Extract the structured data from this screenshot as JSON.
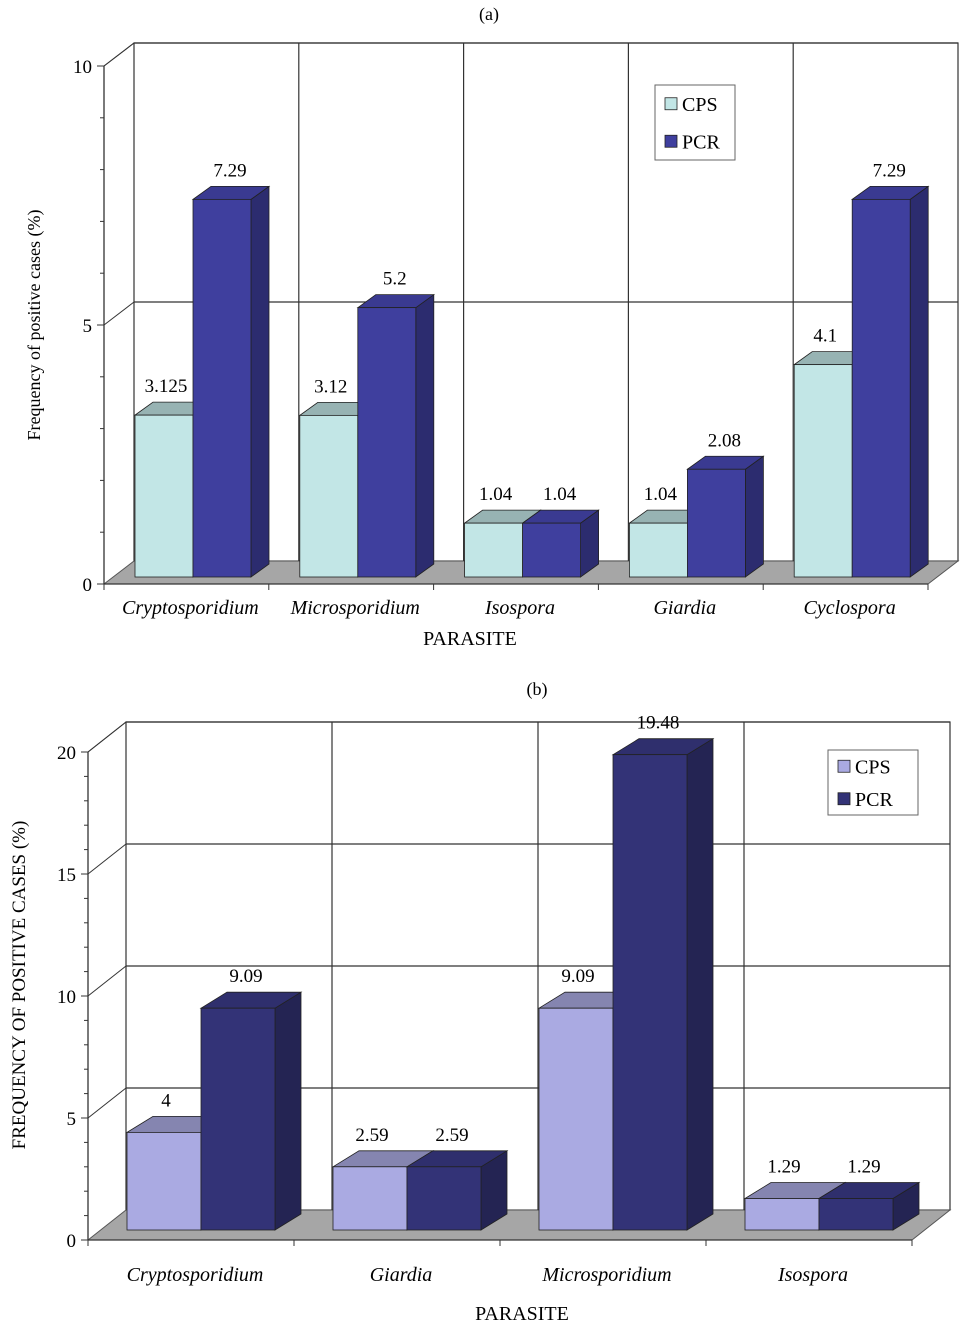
{
  "chart_data": [
    {
      "type": "bar",
      "panel_label": "(a)",
      "xlabel": "PARASITE",
      "ylabel": "Frequency of positive cases (%)",
      "categories": [
        "Cryptosporidium",
        "Microsporidium",
        "Isospora",
        "Giardia",
        "Cyclospora"
      ],
      "series": [
        {
          "name": "CPS",
          "values": [
            3.125,
            3.12,
            1.04,
            1.04,
            4.1
          ],
          "labels": [
            "3.125",
            "3.12",
            "1.04",
            "1.04",
            "4.1"
          ],
          "color": "#c2e6e6"
        },
        {
          "name": "PCR",
          "values": [
            7.29,
            5.2,
            1.04,
            2.08,
            7.29
          ],
          "labels": [
            "7.29",
            "5.2",
            "1.04",
            "2.08",
            "7.29"
          ],
          "color": "#3f3f9e"
        }
      ],
      "ylim": [
        0,
        10
      ],
      "yticks": [
        "0",
        "5",
        "10"
      ],
      "grid": true,
      "style": "3d",
      "legend": "top-right"
    },
    {
      "type": "bar",
      "panel_label": "(b)",
      "xlabel": "PARASITE",
      "ylabel": "FREQUENCY OF POSITIVE CASES (%)",
      "categories": [
        "Cryptosporidium",
        "Giardia",
        "Microsporidium",
        "Isospora"
      ],
      "series": [
        {
          "name": "CPS",
          "values": [
            4,
            2.59,
            9.09,
            1.29
          ],
          "labels": [
            "4",
            "2.59",
            "9.09",
            "1.29"
          ],
          "color": "#aaaae2"
        },
        {
          "name": "PCR",
          "values": [
            9.09,
            2.59,
            19.48,
            1.29
          ],
          "labels": [
            "9.09",
            "2.59",
            "19.48",
            "1.29"
          ],
          "color": "#333377"
        }
      ],
      "ylim": [
        0,
        20
      ],
      "yticks": [
        "0",
        "5",
        "10",
        "15",
        "20"
      ],
      "grid": true,
      "style": "3d",
      "legend": "top-right"
    }
  ]
}
